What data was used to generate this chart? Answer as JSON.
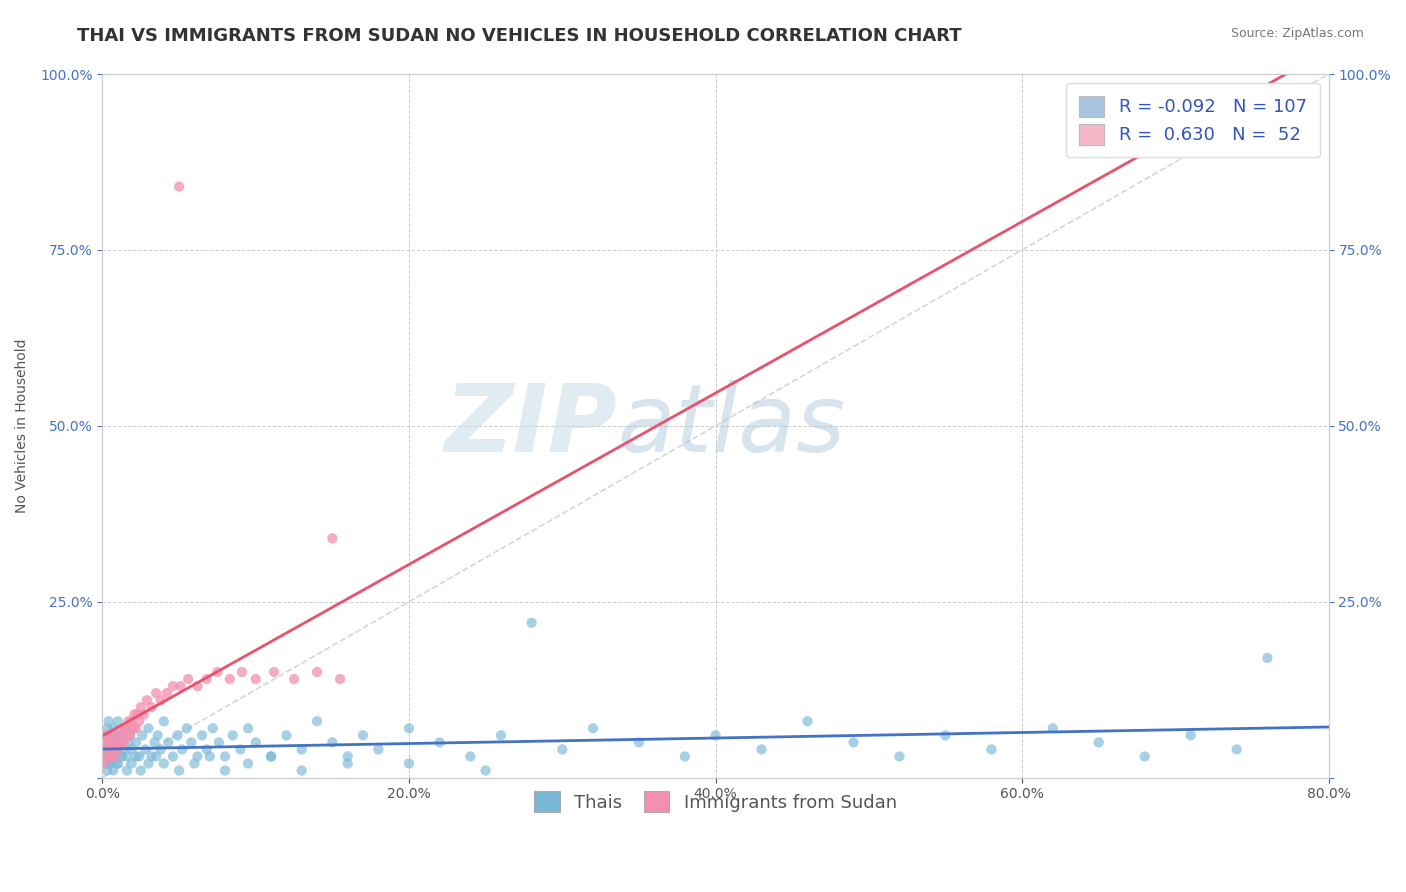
{
  "title": "THAI VS IMMIGRANTS FROM SUDAN NO VEHICLES IN HOUSEHOLD CORRELATION CHART",
  "source": "Source: ZipAtlas.com",
  "ylabel": "No Vehicles in Household",
  "watermark_zip": "ZIP",
  "watermark_atlas": "atlas",
  "xmin": 0.0,
  "xmax": 0.8,
  "ymin": 0.0,
  "ymax": 1.0,
  "xtick_labels": [
    "0.0%",
    "20.0%",
    "40.0%",
    "60.0%",
    "80.0%"
  ],
  "xtick_vals": [
    0.0,
    0.2,
    0.4,
    0.6,
    0.8
  ],
  "ytick_labels": [
    "",
    "25.0%",
    "50.0%",
    "75.0%",
    "100.0%"
  ],
  "ytick_vals": [
    0.0,
    0.25,
    0.5,
    0.75,
    1.0
  ],
  "legend_entries": [
    {
      "label": "Thais",
      "color": "#a8c4e0",
      "R": "-0.092",
      "N": "107"
    },
    {
      "label": "Immigrants from Sudan",
      "color": "#f4b8c8",
      "R": " 0.630",
      "N": " 52"
    }
  ],
  "thai_color": "#7ab8d8",
  "sudan_color": "#f48fb1",
  "thai_line_color": "#4472c4",
  "sudan_line_color": "#e8536a",
  "thai_scatter": {
    "x": [
      0.001,
      0.002,
      0.002,
      0.003,
      0.003,
      0.004,
      0.004,
      0.005,
      0.005,
      0.006,
      0.006,
      0.007,
      0.007,
      0.008,
      0.008,
      0.009,
      0.009,
      0.01,
      0.01,
      0.011,
      0.012,
      0.013,
      0.014,
      0.015,
      0.016,
      0.017,
      0.018,
      0.019,
      0.02,
      0.022,
      0.024,
      0.026,
      0.028,
      0.03,
      0.032,
      0.034,
      0.036,
      0.038,
      0.04,
      0.043,
      0.046,
      0.049,
      0.052,
      0.055,
      0.058,
      0.062,
      0.065,
      0.068,
      0.072,
      0.076,
      0.08,
      0.085,
      0.09,
      0.095,
      0.1,
      0.11,
      0.12,
      0.13,
      0.14,
      0.15,
      0.16,
      0.17,
      0.18,
      0.2,
      0.22,
      0.24,
      0.26,
      0.28,
      0.3,
      0.32,
      0.35,
      0.38,
      0.4,
      0.43,
      0.46,
      0.49,
      0.52,
      0.55,
      0.58,
      0.62,
      0.65,
      0.68,
      0.71,
      0.74,
      0.76,
      0.003,
      0.005,
      0.007,
      0.01,
      0.013,
      0.016,
      0.019,
      0.022,
      0.025,
      0.03,
      0.035,
      0.04,
      0.05,
      0.06,
      0.07,
      0.08,
      0.095,
      0.11,
      0.13,
      0.16,
      0.2,
      0.25
    ],
    "y": [
      0.04,
      0.02,
      0.06,
      0.03,
      0.07,
      0.04,
      0.08,
      0.02,
      0.05,
      0.03,
      0.06,
      0.04,
      0.07,
      0.03,
      0.05,
      0.02,
      0.06,
      0.04,
      0.08,
      0.05,
      0.03,
      0.06,
      0.04,
      0.07,
      0.03,
      0.05,
      0.06,
      0.04,
      0.07,
      0.05,
      0.03,
      0.06,
      0.04,
      0.07,
      0.03,
      0.05,
      0.06,
      0.04,
      0.08,
      0.05,
      0.03,
      0.06,
      0.04,
      0.07,
      0.05,
      0.03,
      0.06,
      0.04,
      0.07,
      0.05,
      0.03,
      0.06,
      0.04,
      0.07,
      0.05,
      0.03,
      0.06,
      0.04,
      0.08,
      0.05,
      0.03,
      0.06,
      0.04,
      0.07,
      0.05,
      0.03,
      0.06,
      0.22,
      0.04,
      0.07,
      0.05,
      0.03,
      0.06,
      0.04,
      0.08,
      0.05,
      0.03,
      0.06,
      0.04,
      0.07,
      0.05,
      0.03,
      0.06,
      0.04,
      0.17,
      0.01,
      0.02,
      0.01,
      0.02,
      0.03,
      0.01,
      0.02,
      0.03,
      0.01,
      0.02,
      0.03,
      0.02,
      0.01,
      0.02,
      0.03,
      0.01,
      0.02,
      0.03,
      0.01,
      0.02,
      0.02,
      0.01
    ]
  },
  "sudan_scatter": {
    "x": [
      0.001,
      0.002,
      0.002,
      0.003,
      0.003,
      0.004,
      0.004,
      0.005,
      0.005,
      0.006,
      0.006,
      0.007,
      0.007,
      0.008,
      0.009,
      0.01,
      0.011,
      0.012,
      0.013,
      0.014,
      0.015,
      0.016,
      0.017,
      0.018,
      0.019,
      0.02,
      0.021,
      0.022,
      0.023,
      0.024,
      0.025,
      0.027,
      0.029,
      0.032,
      0.035,
      0.038,
      0.042,
      0.046,
      0.051,
      0.056,
      0.062,
      0.068,
      0.075,
      0.083,
      0.091,
      0.1,
      0.112,
      0.125,
      0.14,
      0.155,
      0.05,
      0.15
    ],
    "y": [
      0.02,
      0.03,
      0.05,
      0.04,
      0.06,
      0.03,
      0.05,
      0.04,
      0.06,
      0.03,
      0.05,
      0.04,
      0.06,
      0.03,
      0.05,
      0.04,
      0.06,
      0.05,
      0.07,
      0.05,
      0.07,
      0.06,
      0.08,
      0.06,
      0.08,
      0.07,
      0.09,
      0.07,
      0.09,
      0.08,
      0.1,
      0.09,
      0.11,
      0.1,
      0.12,
      0.11,
      0.12,
      0.13,
      0.13,
      0.14,
      0.13,
      0.14,
      0.15,
      0.14,
      0.15,
      0.14,
      0.15,
      0.14,
      0.15,
      0.14,
      0.84,
      0.34
    ]
  },
  "diagonal_line": {
    "x0": 0.0,
    "y0": 0.0,
    "x1": 0.8,
    "y1": 1.0
  },
  "background_color": "#ffffff",
  "grid_color": "#cccccc",
  "title_fontsize": 13,
  "axis_label_fontsize": 10,
  "tick_fontsize": 10,
  "legend_fontsize": 13
}
